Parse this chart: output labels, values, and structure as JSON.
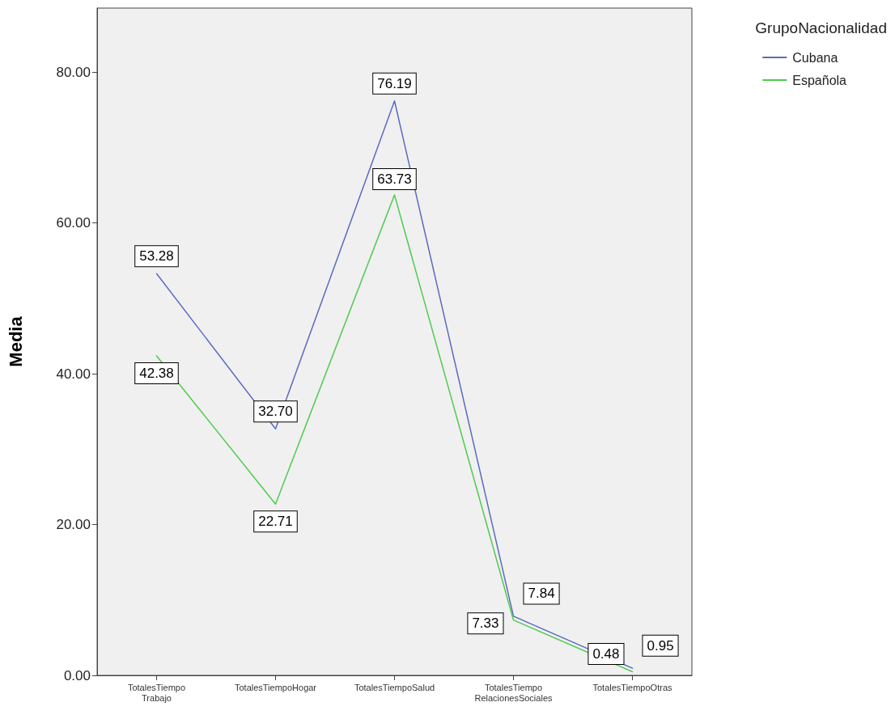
{
  "chart_data": {
    "type": "line",
    "ylabel": "Media",
    "legend_title": "GrupoNacionalidad",
    "legend": "top right",
    "categories": [
      "TotalesTiempo\nTrabajo",
      "TotalesTiempoHogar",
      "TotalesTiempoSalud",
      "TotalesTiempo\nRelacionesSociales",
      "TotalesTiempoOtras"
    ],
    "series": [
      {
        "name": "Cubana",
        "color": "#5a6bbf",
        "values": [
          53.28,
          32.7,
          76.19,
          7.84,
          0.95
        ],
        "value_labels": [
          "53.28",
          "32.70",
          "76.19",
          "7.84",
          "0.95"
        ]
      },
      {
        "name": "Española",
        "color": "#4fca4f",
        "values": [
          42.38,
          22.71,
          63.73,
          7.33,
          0.48
        ],
        "value_labels": [
          "42.38",
          "22.71",
          "63.73",
          "7.33",
          "0.48"
        ]
      }
    ],
    "ylim": [
      0,
      88.5
    ],
    "yticks": [
      {
        "value": 0,
        "label": "0.00"
      },
      {
        "value": 20,
        "label": "20.00"
      },
      {
        "value": 40,
        "label": "40.00"
      },
      {
        "value": 60,
        "label": "60.00"
      },
      {
        "value": 80,
        "label": "80.00"
      }
    ],
    "grid": false,
    "marker": "none",
    "line_style": "solid"
  }
}
